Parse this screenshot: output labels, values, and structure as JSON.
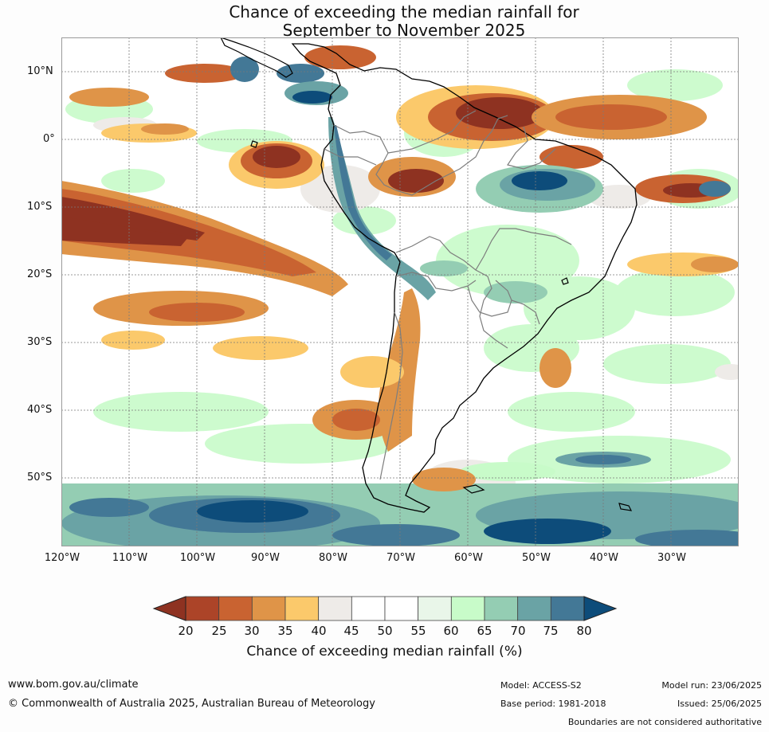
{
  "title": {
    "line1": "Chance of exceeding the median rainfall for",
    "line2": "September to November 2025"
  },
  "map": {
    "lat_labels": [
      "10°N",
      "0°",
      "10°S",
      "20°S",
      "30°S",
      "40°S",
      "50°S"
    ],
    "lon_labels": [
      "120°W",
      "110°W",
      "100°W",
      "90°W",
      "80°W",
      "70°W",
      "60°W",
      "50°W",
      "40°W",
      "30°W"
    ]
  },
  "colorbar": {
    "ticks": [
      "20",
      "25",
      "30",
      "35",
      "40",
      "45",
      "50",
      "55",
      "60",
      "65",
      "70",
      "75",
      "80"
    ],
    "colors": [
      "#8e3221",
      "#ac4428",
      "#c96331",
      "#df9448",
      "#fbc96b",
      "#eeebe8",
      "#ffffff",
      "#ffffff",
      "#e9f6e9",
      "#c8fbc9",
      "#94cdb3",
      "#6aa3a5",
      "#437896",
      "#0d4c7a"
    ],
    "label": "Chance of exceeding median rainfall (%)"
  },
  "footer": {
    "website": "www.bom.gov.au/climate",
    "copyright": "© Commonwealth of Australia 2025, Australian Bureau of Meteorology",
    "model": "Model: ACCESS-S2",
    "base_period": "Base period: 1981-2018",
    "model_run": "Model run: 23/06/2025",
    "issued": "Issued: 25/06/2025",
    "boundaries": "Boundaries are not considered authoritative"
  }
}
